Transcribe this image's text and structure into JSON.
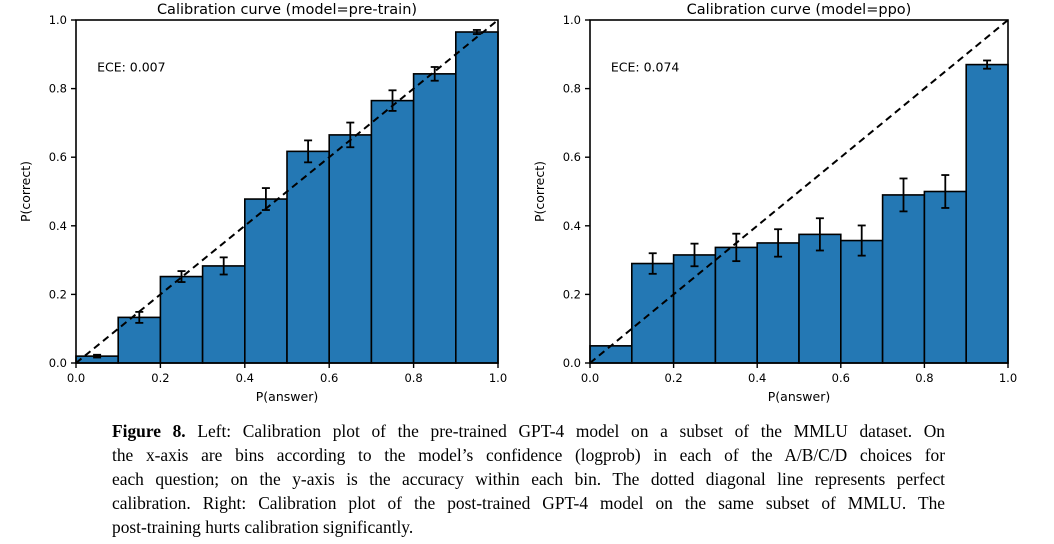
{
  "page": {
    "background": "#ffffff"
  },
  "chart_data": [
    {
      "type": "bar",
      "title": "Calibration curve (model=pre-train)",
      "annotation": "ECE: 0.007",
      "xlabel": "P(answer)",
      "ylabel": "P(correct)",
      "xlim": [
        0.0,
        1.0
      ],
      "ylim": [
        0.0,
        1.0
      ],
      "xticks": [
        0.0,
        0.2,
        0.4,
        0.6,
        0.8,
        1.0
      ],
      "yticks": [
        0.0,
        0.2,
        0.4,
        0.6,
        0.8,
        1.0
      ],
      "grid": false,
      "legend": "none",
      "bin_edges": [
        0.0,
        0.1,
        0.2,
        0.3,
        0.4,
        0.5,
        0.6,
        0.7,
        0.8,
        0.9,
        1.0
      ],
      "values": [
        0.02,
        0.133,
        0.252,
        0.283,
        0.478,
        0.617,
        0.665,
        0.765,
        0.843,
        0.965
      ],
      "errors": [
        0.004,
        0.016,
        0.016,
        0.025,
        0.032,
        0.032,
        0.036,
        0.03,
        0.02,
        0.006
      ],
      "diagonal": {
        "from": [
          0.0,
          0.0
        ],
        "to": [
          1.0,
          1.0
        ],
        "style": "dashed",
        "color": "#000000"
      },
      "bar_color": "#2478b4",
      "bar_edge_color": "#000000",
      "error_bar_color": "#000000"
    },
    {
      "type": "bar",
      "title": "Calibration curve (model=ppo)",
      "annotation": "ECE: 0.074",
      "xlabel": "P(answer)",
      "ylabel": "P(correct)",
      "xlim": [
        0.0,
        1.0
      ],
      "ylim": [
        0.0,
        1.0
      ],
      "xticks": [
        0.0,
        0.2,
        0.4,
        0.6,
        0.8,
        1.0
      ],
      "yticks": [
        0.0,
        0.2,
        0.4,
        0.6,
        0.8,
        1.0
      ],
      "grid": false,
      "legend": "none",
      "bin_edges": [
        0.0,
        0.1,
        0.2,
        0.3,
        0.4,
        0.5,
        0.6,
        0.7,
        0.8,
        0.9,
        1.0
      ],
      "values": [
        0.05,
        0.29,
        0.315,
        0.337,
        0.35,
        0.375,
        0.357,
        0.49,
        0.5,
        0.87
      ],
      "errors": [
        0.0,
        0.03,
        0.033,
        0.04,
        0.04,
        0.047,
        0.044,
        0.048,
        0.048,
        0.012
      ],
      "diagonal": {
        "from": [
          0.0,
          0.0
        ],
        "to": [
          1.0,
          1.0
        ],
        "style": "dashed",
        "color": "#000000"
      },
      "bar_color": "#2478b4",
      "bar_edge_color": "#000000",
      "error_bar_color": "#000000"
    }
  ],
  "figure": {
    "caption": {
      "label": "Figure 8.",
      "lines": [
        " Left: Calibration plot of the pre-trained GPT-4 model on a subset of the MMLU dataset. On",
        "the x-axis are bins according to the model’s confidence (logprob) in each of the A/B/C/D choices for",
        "each question; on the y-axis is the accuracy within each bin. The dotted diagonal line represents perfect",
        "calibration. Right: Calibration plot of the post-trained GPT-4 model on the same subset of MMLU. The",
        "post-training hurts calibration significantly."
      ]
    }
  }
}
